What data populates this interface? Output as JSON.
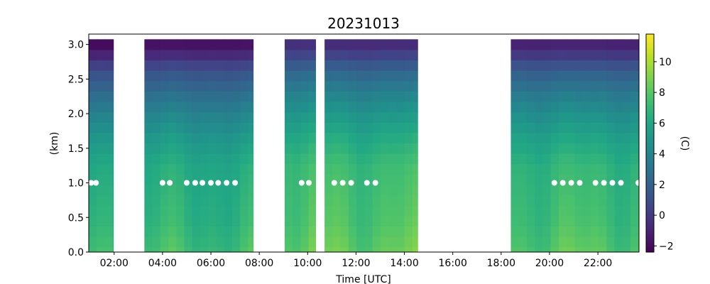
{
  "chart_data": {
    "type": "heatmap",
    "title": "20231013",
    "xlabel": "Time [UTC]",
    "ylabel": "(km)",
    "colorbar_label": "(C)",
    "colormap": "viridis",
    "xlim_hours": [
      0.95,
      23.7
    ],
    "ylim": [
      0.0,
      3.15
    ],
    "x_ticks": [
      {
        "hour": 2,
        "label": "02:00"
      },
      {
        "hour": 4,
        "label": "04:00"
      },
      {
        "hour": 6,
        "label": "06:00"
      },
      {
        "hour": 8,
        "label": "08:00"
      },
      {
        "hour": 10,
        "label": "10:00"
      },
      {
        "hour": 12,
        "label": "12:00"
      },
      {
        "hour": 14,
        "label": "14:00"
      },
      {
        "hour": 16,
        "label": "16:00"
      },
      {
        "hour": 18,
        "label": "18:00"
      },
      {
        "hour": 20,
        "label": "20:00"
      },
      {
        "hour": 22,
        "label": "22:00"
      }
    ],
    "y_ticks": [
      {
        "value": 0.0,
        "label": "0.0"
      },
      {
        "value": 0.5,
        "label": "0.5"
      },
      {
        "value": 1.0,
        "label": "1.0"
      },
      {
        "value": 1.5,
        "label": "1.5"
      },
      {
        "value": 2.0,
        "label": "2.0"
      },
      {
        "value": 2.5,
        "label": "2.5"
      },
      {
        "value": 3.0,
        "label": "3.0"
      }
    ],
    "colorbar": {
      "vmin": -2.4,
      "vmax": 11.8,
      "ticks": [
        {
          "value": -2,
          "label": "−2"
        },
        {
          "value": 0,
          "label": "0"
        },
        {
          "value": 2,
          "label": "2"
        },
        {
          "value": 4,
          "label": "4"
        },
        {
          "value": 6,
          "label": "6"
        },
        {
          "value": 8,
          "label": "8"
        },
        {
          "value": 10,
          "label": "10"
        }
      ]
    },
    "profile": {
      "heights_km": [
        0.0,
        0.15,
        0.3,
        0.45,
        0.6,
        0.75,
        0.9,
        1.05,
        1.2,
        1.35,
        1.5,
        1.65,
        1.8,
        1.95,
        2.1,
        2.25,
        2.4,
        2.55,
        2.7,
        2.85,
        3.0
      ],
      "temperature_c": [
        7.0,
        6.8,
        6.6,
        6.4,
        6.3,
        6.2,
        6.1,
        6.0,
        5.9,
        5.6,
        5.2,
        4.8,
        4.3,
        3.8,
        3.2,
        2.6,
        1.9,
        1.2,
        0.2,
        -1.0,
        -2.0
      ]
    },
    "data_segments": [
      {
        "start_hour": 0.95,
        "end_hour": 1.97,
        "offset_c": 0.0
      },
      {
        "start_hour": 3.25,
        "end_hour": 7.75,
        "offset_c": 0.3
      },
      {
        "start_hour": 9.05,
        "end_hour": 10.33,
        "offset_c": 1.6
      },
      {
        "start_hour": 10.7,
        "end_hour": 14.55,
        "offset_c": 1.4
      },
      {
        "start_hour": 18.4,
        "end_hour": 23.7,
        "offset_c": 1.0
      }
    ],
    "markers": {
      "height_km": 1.0,
      "hours": [
        1.05,
        1.25,
        4.0,
        4.3,
        5.0,
        5.35,
        5.65,
        6.0,
        6.3,
        6.65,
        7.0,
        9.75,
        10.05,
        11.1,
        11.45,
        11.8,
        12.45,
        12.8,
        20.2,
        20.55,
        20.9,
        21.25,
        21.9,
        22.25,
        22.6,
        22.95,
        23.7
      ]
    }
  }
}
